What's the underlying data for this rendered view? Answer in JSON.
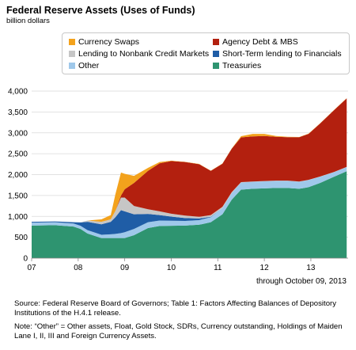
{
  "title": "Federal Reserve Assets (Uses of Funds)",
  "subtitle": "billion dollars",
  "through_label": "through October 09, 2013",
  "source": "Source: Federal Reserve Board of Governors; Table 1:  Factors Affecting Balances of Depository Institutions of the H.4.1 release.",
  "note": "Note: “Other” = Other assets, Float, Gold Stock, SDRs, Currency outstanding, Holdings of Maiden Lane I, II, III and Foreign Currency Assets.",
  "colors": {
    "treasuries": "#2e9470",
    "other": "#9fc8ea",
    "short_term": "#1f5da6",
    "nonbank": "#c6c6c6",
    "agency": "#b3200f",
    "swaps": "#f3a21c"
  },
  "chart_data": {
    "type": "area",
    "stacked": true,
    "title": "Federal Reserve Assets (Uses of Funds)",
    "ylabel": "billion dollars",
    "ylim": [
      0,
      4000
    ],
    "yticks": [
      0,
      500,
      1000,
      1500,
      2000,
      2500,
      3000,
      3500,
      4000
    ],
    "xlim": [
      2007.0,
      2013.8
    ],
    "xticks": [
      {
        "value": 2007.0,
        "label": "07"
      },
      {
        "value": 2008.0,
        "label": "08"
      },
      {
        "value": 2009.0,
        "label": "09"
      },
      {
        "value": 2010.0,
        "label": "10"
      },
      {
        "value": 2011.0,
        "label": "11"
      },
      {
        "value": 2012.0,
        "label": "12"
      },
      {
        "value": 2013.0,
        "label": "13"
      }
    ],
    "grid": "horizontal",
    "legend_position": "top",
    "x": [
      2007.0,
      2007.5,
      2007.9,
      2008.05,
      2008.2,
      2008.5,
      2008.7,
      2008.8,
      2008.92,
      2009.0,
      2009.2,
      2009.5,
      2009.75,
      2010.0,
      2010.3,
      2010.6,
      2010.85,
      2011.1,
      2011.3,
      2011.5,
      2011.75,
      2012.0,
      2012.25,
      2012.5,
      2012.75,
      2012.95,
      2013.2,
      2013.5,
      2013.77
    ],
    "series": [
      {
        "name": "Treasuries",
        "color_key": "treasuries",
        "values": [
          780,
          790,
          755,
          700,
          590,
          480,
          480,
          480,
          480,
          480,
          550,
          720,
          770,
          775,
          780,
          800,
          860,
          1050,
          1400,
          1640,
          1660,
          1670,
          1680,
          1680,
          1660,
          1700,
          1800,
          1950,
          2080
        ]
      },
      {
        "name": "Other",
        "color_key": "other",
        "values": [
          70,
          70,
          75,
          75,
          80,
          80,
          90,
          100,
          120,
          140,
          150,
          140,
          130,
          120,
          110,
          110,
          120,
          150,
          160,
          170,
          170,
          170,
          170,
          170,
          170,
          170,
          150,
          110,
          100
        ]
      },
      {
        "name": "Short-Term lending to Financials",
        "color_key": "short_term",
        "values": [
          20,
          20,
          30,
          80,
          200,
          250,
          300,
          400,
          550,
          500,
          350,
          200,
          130,
          100,
          70,
          40,
          10,
          0,
          0,
          0,
          0,
          0,
          0,
          0,
          0,
          0,
          0,
          0,
          0
        ]
      },
      {
        "name": "Lending to Nonbank Credit Markets",
        "color_key": "nonbank",
        "values": [
          0,
          0,
          0,
          0,
          30,
          60,
          60,
          150,
          300,
          330,
          200,
          110,
          90,
          70,
          60,
          40,
          40,
          30,
          20,
          10,
          5,
          5,
          5,
          5,
          5,
          5,
          5,
          5,
          5
        ]
      },
      {
        "name": "Agency Debt & MBS",
        "color_key": "agency",
        "values": [
          0,
          0,
          0,
          0,
          0,
          0,
          0,
          0,
          50,
          200,
          550,
          920,
          1150,
          1260,
          1280,
          1260,
          1060,
          1030,
          1040,
          1070,
          1080,
          1080,
          1050,
          1040,
          1060,
          1100,
          1270,
          1480,
          1640
        ]
      },
      {
        "name": "Currency Swaps",
        "color_key": "swaps",
        "values": [
          0,
          0,
          0,
          0,
          0,
          60,
          100,
          400,
          550,
          370,
          170,
          70,
          30,
          10,
          5,
          5,
          5,
          5,
          5,
          30,
          60,
          50,
          20,
          10,
          5,
          5,
          5,
          5,
          5
        ]
      }
    ]
  },
  "legend": [
    {
      "label": "Currency Swaps",
      "color_key": "swaps"
    },
    {
      "label": "Agency Debt & MBS",
      "color_key": "agency"
    },
    {
      "label": "Lending to Nonbank Credit Markets",
      "color_key": "nonbank"
    },
    {
      "label": "Short-Term lending to Financials",
      "color_key": "short_term"
    },
    {
      "label": "Other",
      "color_key": "other"
    },
    {
      "label": "Treasuries",
      "color_key": "treasuries"
    }
  ]
}
